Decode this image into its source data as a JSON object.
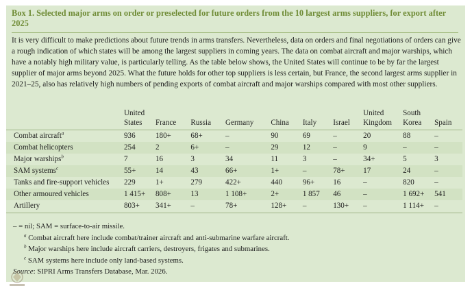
{
  "box": {
    "title": "Box 1. Selected major arms on order or preselected for future orders from the 10 largest arms suppliers, for export after 2025",
    "intro": "It is very difficult to make predictions about future trends in arms transfers. Nevertheless, data on orders and final negotiations of orders can give a rough indication of which states will be among the largest suppliers in coming years. The data on combat aircraft and major warships, which have a notably high military value, is particularly telling. As the table below shows, the United States will continue to be by far the largest supplier of major arms beyond 2025. What the future holds for other top suppliers is less certain, but France, the second largest arms supplier in 2021–25, also has relatively high numbers of pending exports of combat aircraft and major warships compared with most other suppliers."
  },
  "table": {
    "columns": [
      "United States",
      "France",
      "Russia",
      "Germany",
      "China",
      "Italy",
      "Israel",
      "United Kingdom",
      "South Korea",
      "Spain"
    ],
    "rows": [
      {
        "label": "Combat aircraft",
        "note": "a",
        "values": [
          "936",
          "180+",
          "68+",
          "–",
          "90",
          "69",
          "–",
          "20",
          "88",
          "–"
        ]
      },
      {
        "label": "Combat helicopters",
        "note": "",
        "values": [
          "254",
          "2",
          "6+",
          "–",
          "29",
          "12",
          "–",
          "9",
          "–",
          "–"
        ]
      },
      {
        "label": "Major warships",
        "note": "b",
        "values": [
          "7",
          "16",
          "3",
          "34",
          "11",
          "3",
          "–",
          "34+",
          "5",
          "3"
        ]
      },
      {
        "label": "SAM systems",
        "note": "c",
        "values": [
          "55+",
          "14",
          "43",
          "66+",
          "1+",
          "–",
          "78+",
          "17",
          "24",
          "–"
        ]
      },
      {
        "label": "Tanks and fire-support vehicles",
        "note": "",
        "values": [
          "229",
          "1+",
          "279",
          "422+",
          "440",
          "96+",
          "16",
          "–",
          "820",
          "–"
        ]
      },
      {
        "label": "Other armoured vehicles",
        "note": "",
        "values": [
          "1 415+",
          "808+",
          "13",
          "1 108+",
          "2+",
          "1 857",
          "46",
          "–",
          "1 692+",
          "541"
        ]
      },
      {
        "label": "Artillery",
        "note": "",
        "values": [
          "803+",
          "341+",
          "–",
          "78+",
          "128+",
          "–",
          "130+",
          "–",
          "1 114+",
          "–"
        ]
      }
    ]
  },
  "notes": {
    "legend": "– = nil; SAM = surface-to-air missile.",
    "footnotes": [
      {
        "mark": "a",
        "text": "Combat aircraft here include combat/trainer aircraft and anti-submarine warfare aircraft."
      },
      {
        "mark": "b",
        "text": "Major warships here include aircraft carriers, destroyers, frigates and submarines."
      },
      {
        "mark": "c",
        "text": "SAM systems here include only land-based systems."
      }
    ],
    "source_label": "Source",
    "source_text": ": SIPRI Arms Transfers Database, Mar. 2026."
  }
}
